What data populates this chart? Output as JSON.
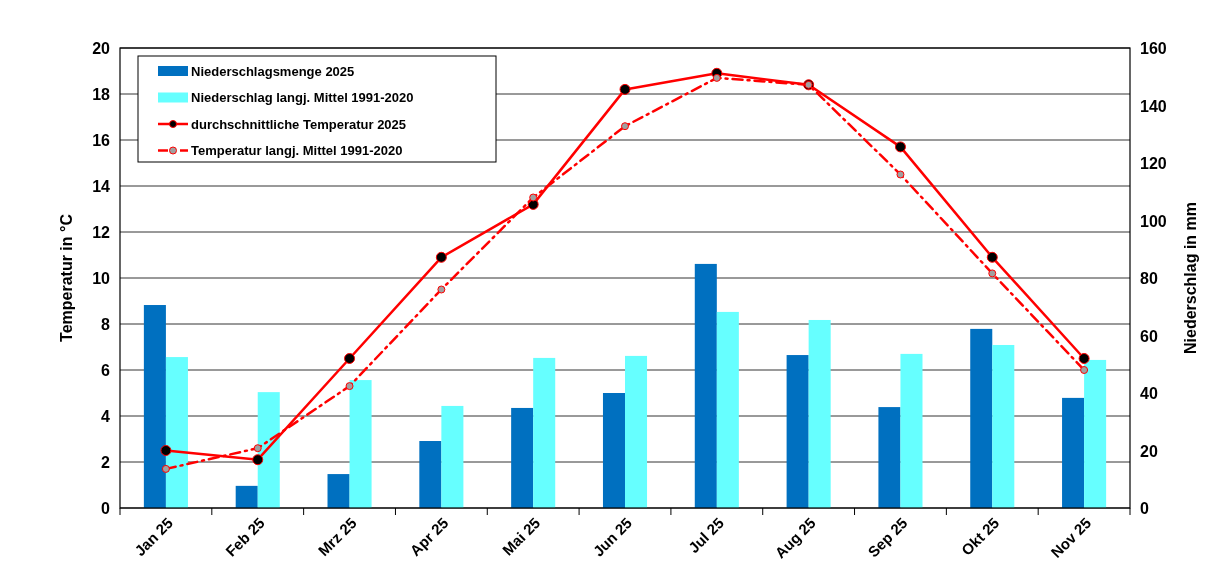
{
  "chart_data": {
    "type": "bar",
    "categories": [
      "Jan 25",
      "Feb 25",
      "Mrz 25",
      "Apr 25",
      "Mai 25",
      "Jun 25",
      "Jul 25",
      "Aug 25",
      "Sep 25",
      "Okt 25",
      "Nov 25"
    ],
    "ylabel": "Temperatur in °C",
    "y2label": "Niederschlag in mm",
    "ylim": [
      0,
      20
    ],
    "yticks": [
      0,
      2,
      4,
      6,
      8,
      10,
      12,
      14,
      16,
      18,
      20
    ],
    "y2lim": [
      0,
      160
    ],
    "y2ticks": [
      0,
      20,
      40,
      60,
      80,
      100,
      120,
      140,
      160
    ],
    "grid": "y",
    "legend": "top left",
    "marker": "circle",
    "series": [
      {
        "name": "Niederschlagsmenge 2025",
        "type": "bar",
        "axis": "y2",
        "color": "#0070c0",
        "values": [
          70.6,
          7.7,
          11.8,
          23.3,
          34.8,
          40,
          84.9,
          53.2,
          35.1,
          62.3,
          38.3
        ]
      },
      {
        "name": "Niederschlag langj. Mittel 1991-2020",
        "type": "bar",
        "axis": "y2",
        "color": "#66ffff",
        "values": [
          52.5,
          40.3,
          44.5,
          35.5,
          52.2,
          52.9,
          68.2,
          65.4,
          53.6,
          56.7,
          51.5
        ]
      },
      {
        "name": "durchschnittliche Temperatur 2025",
        "type": "line",
        "line_style": "solid",
        "color": "#ff0000",
        "values": [
          2.5,
          2.1,
          6.5,
          10.9,
          13.2,
          18.2,
          18.9,
          18.4,
          15.7,
          10.9,
          6.5
        ]
      },
      {
        "name": "Temperatur langj. Mittel 1991-2020",
        "type": "line",
        "line_style": "dashed",
        "color": "#ff0000",
        "values": [
          1.7,
          2.6,
          5.3,
          9.5,
          13.5,
          16.6,
          18.7,
          18.4,
          14.5,
          10.2,
          6.0
        ]
      }
    ]
  }
}
